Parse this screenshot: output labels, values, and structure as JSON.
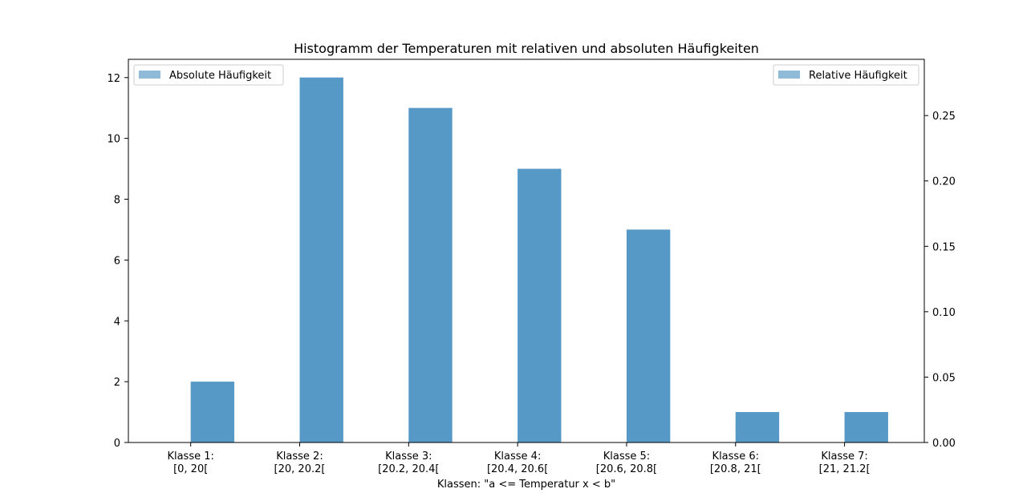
{
  "chart_data": {
    "type": "bar",
    "title": "Histogramm der Temperaturen mit relativen und absoluten Häufigkeiten",
    "xlabel": "Klassen: \"a <= Temperatur x < b\"",
    "ylabel": "",
    "y2label": "",
    "categories": [
      [
        "Klasse 1:",
        "[0, 20["
      ],
      [
        "Klasse 2:",
        "[20, 20.2["
      ],
      [
        "Klasse 3:",
        "[20.2, 20.4["
      ],
      [
        "Klasse 4:",
        "[20.4, 20.6["
      ],
      [
        "Klasse 5:",
        "[20.6, 20.8["
      ],
      [
        "Klasse 6:",
        "[20.8, 21["
      ],
      [
        "Klasse 7:",
        "[21, 21.2["
      ]
    ],
    "series": [
      {
        "name": "Absolute Häufigkeit",
        "axis": "left",
        "values": [
          2,
          12,
          11,
          9,
          7,
          1,
          1
        ],
        "color": "#1f77b4",
        "opacity": 0.5
      },
      {
        "name": "Relative Häufigkeit",
        "axis": "right",
        "values": [
          0.0465,
          0.2791,
          0.2558,
          0.2093,
          0.1628,
          0.0233,
          0.0233
        ],
        "color": "#1f77b4",
        "opacity": 0.5
      }
    ],
    "ylim": [
      0,
      12.6
    ],
    "y2lim": [
      0,
      0.293
    ],
    "yticks": [
      "0",
      "2",
      "4",
      "6",
      "8",
      "10",
      "12"
    ],
    "y2ticks": [
      "0.00",
      "0.05",
      "0.10",
      "0.15",
      "0.20",
      "0.25"
    ],
    "legend_left": "upper left",
    "legend_right": "upper right",
    "grid": false
  }
}
